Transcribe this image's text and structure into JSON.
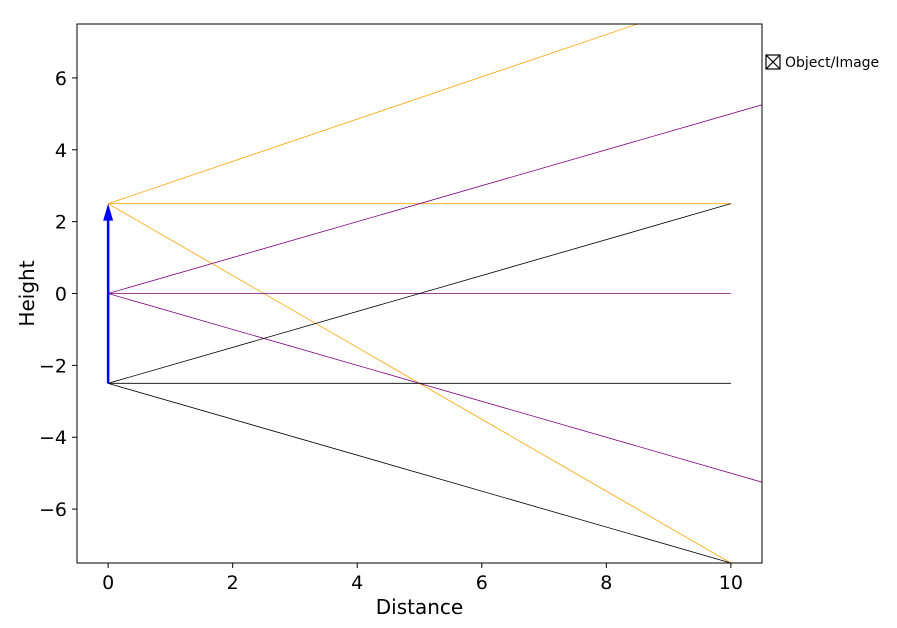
{
  "chart_data": {
    "type": "line",
    "xlabel": "Distance",
    "ylabel": "Height",
    "xlim": [
      -0.5,
      10.5
    ],
    "ylim": [
      -7.5,
      7.5
    ],
    "xticks": [
      0,
      2,
      4,
      6,
      8,
      10
    ],
    "yticks": [
      6,
      4,
      2,
      0,
      -2,
      -4,
      -6
    ],
    "xtick_labels": [
      "0",
      "2",
      "4",
      "6",
      "8",
      "10"
    ],
    "ytick_labels": [
      "6",
      "4",
      "2",
      "0",
      "−2",
      "−4",
      "−6"
    ],
    "grid": false,
    "legend": {
      "position": "outside-top-right",
      "entries": [
        {
          "label": "Object/Image",
          "icon": "x-box-icon"
        }
      ]
    },
    "object_arrow": {
      "x": 0,
      "y_start": -2.5,
      "y_end": 2.5,
      "color": "#0000ff"
    },
    "series": [
      {
        "color": "#ffa500",
        "points": [
          [
            0,
            2.5
          ],
          [
            10,
            2.5
          ]
        ]
      },
      {
        "color": "#ffa500",
        "points": [
          [
            0,
            2.5
          ],
          [
            8.5,
            7.5
          ]
        ]
      },
      {
        "color": "#ffa500",
        "points": [
          [
            0,
            2.5
          ],
          [
            10,
            -7.5
          ]
        ]
      },
      {
        "color": "#800080",
        "points": [
          [
            0,
            0
          ],
          [
            10,
            0
          ]
        ]
      },
      {
        "color": "#800080",
        "points": [
          [
            0,
            0
          ],
          [
            11,
            5.5
          ]
        ]
      },
      {
        "color": "#800080",
        "points": [
          [
            0,
            0
          ],
          [
            11,
            -5.5
          ]
        ]
      },
      {
        "color": "#000000",
        "points": [
          [
            0,
            -2.5
          ],
          [
            10,
            -2.5
          ]
        ]
      },
      {
        "color": "#000000",
        "points": [
          [
            0,
            -2.5
          ],
          [
            10,
            2.5
          ]
        ]
      },
      {
        "color": "#000000",
        "points": [
          [
            0,
            -2.5
          ],
          [
            10,
            -7.5
          ]
        ]
      }
    ]
  }
}
